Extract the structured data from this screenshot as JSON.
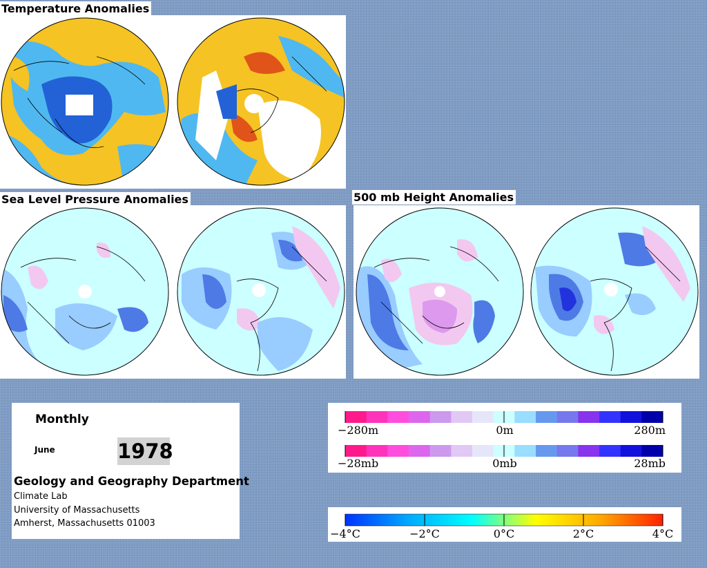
{
  "titles": {
    "temperature": "Temperature Anomalies",
    "slp": "Sea Level Pressure Anomalies",
    "height500": "500 mb Height Anomalies"
  },
  "info": {
    "period": "Monthly",
    "month": "June",
    "year": "1978",
    "department": "Geology and Geography Department",
    "lab": "Climate Lab",
    "university": "University of Massachusetts",
    "address": "Amherst, Massachusetts 01003"
  },
  "legend_height": {
    "labels": [
      "−280m",
      "0m",
      "280m"
    ],
    "colors": [
      "#ff1a8c",
      "#ff33bb",
      "#ff4ddd",
      "#dd66ee",
      "#cc99ee",
      "#e2c8f4",
      "#e6e6fa",
      "#ccffff",
      "#99ddff",
      "#6699ee",
      "#7777ee",
      "#8833ee",
      "#3333ff",
      "#1111dd",
      "#0000aa"
    ]
  },
  "legend_pressure": {
    "labels": [
      "−28mb",
      "0mb",
      "28mb"
    ],
    "colors": [
      "#ff1a8c",
      "#ff33bb",
      "#ff4ddd",
      "#dd66ee",
      "#cc99ee",
      "#e2c8f4",
      "#e6e6fa",
      "#ccffff",
      "#99ddff",
      "#6699ee",
      "#7777ee",
      "#8833ee",
      "#3333ff",
      "#1111dd",
      "#0000aa"
    ]
  },
  "legend_temperature": {
    "labels": [
      "−4°C",
      "−2°C",
      "0°C",
      "2°C",
      "4°C"
    ],
    "gradient": [
      "#0033ff",
      "#00aaff",
      "#00ffff",
      "#ffff00",
      "#ffaa00",
      "#ff2200"
    ]
  },
  "map_colors": {
    "warm": "#f5c323",
    "cool": "#4fb8f0",
    "cold": "#2262d6",
    "hot": "#e0541a",
    "pale": "#ccffff",
    "mid": "#99ccff",
    "blue": "#4e7ae6",
    "pink": "#f2c8f0"
  }
}
